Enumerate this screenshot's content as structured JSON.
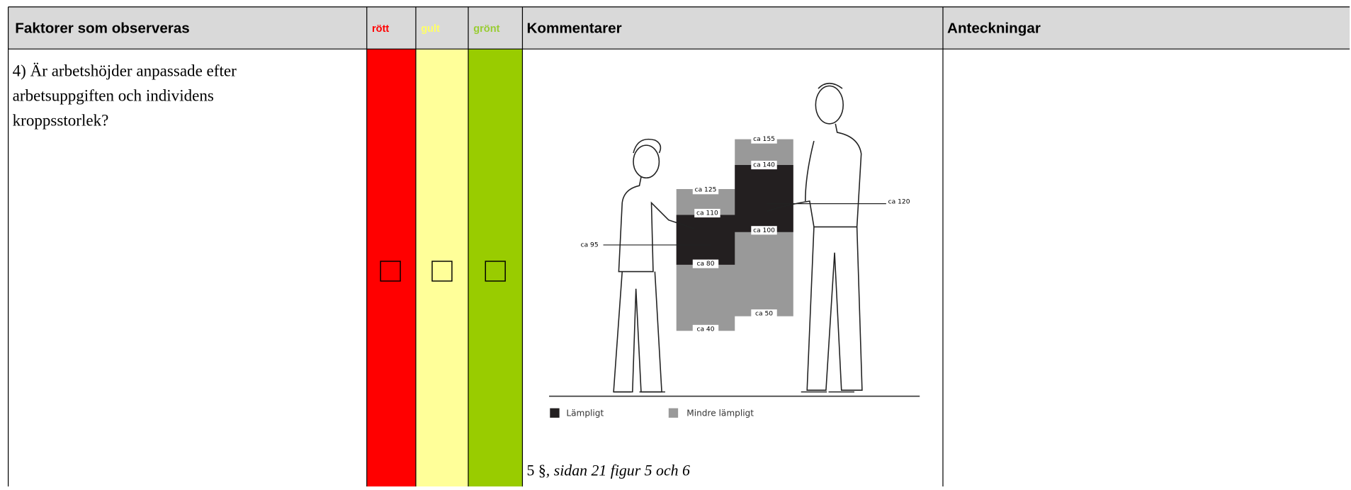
{
  "header": {
    "factors": "Faktorer som observeras",
    "red": "rött",
    "yellow": "gult",
    "green": "grönt",
    "comments": "Kommentarer",
    "notes": "Anteckningar"
  },
  "rows": [
    {
      "factor": [
        "4) Är arbetshöjder anpassade efter",
        "arbetsuppgiften och individens",
        "kroppsstorlek?"
      ],
      "figure": {
        "labels": [
          "ca 155",
          "ca 140",
          "ca 125",
          "ca 110",
          "ca 100",
          "ca 95",
          "ca 80",
          "ca 50",
          "ca 40",
          "ca 120"
        ],
        "legend": [
          "Lämpligt",
          "Mindre lämpligt"
        ]
      },
      "caption_ref": "5 §",
      "caption_rest": ", sidan 21 figur 5 och 6"
    }
  ]
}
